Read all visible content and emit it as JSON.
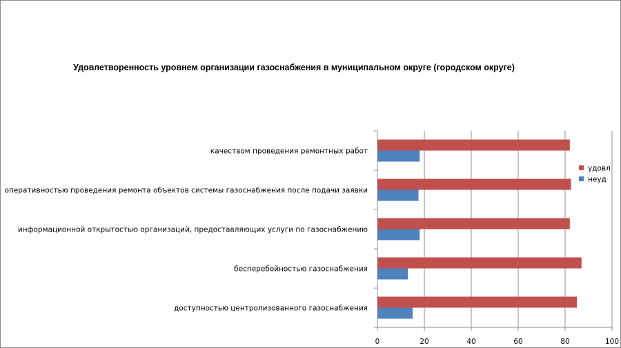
{
  "chart_data": {
    "type": "bar",
    "orientation": "horizontal",
    "title": "Удовлетворенность уровнем организации газоснабжения в муниципальном округе (городском округе)",
    "categories": [
      "доступностью центролизованного газоснабжения",
      "бесперебойностью газоснабжения",
      "информационной открытостью организаций, предоставляющих услуги по газоснабжению",
      "оперативностью проведения ремонта объектов системы газоснабжения после подачи заявки",
      "качеством проведения ремонтных работ"
    ],
    "series": [
      {
        "name": "удовл",
        "color": "#c0504d",
        "values": [
          85,
          87,
          82,
          82.5,
          82
        ]
      },
      {
        "name": "неуд",
        "color": "#4f81bd",
        "values": [
          15,
          13,
          18,
          17.5,
          18
        ]
      }
    ],
    "xlim": [
      0,
      100
    ],
    "xticks": [
      0,
      20,
      40,
      60,
      80,
      100
    ],
    "grid": true,
    "legend": "right"
  }
}
